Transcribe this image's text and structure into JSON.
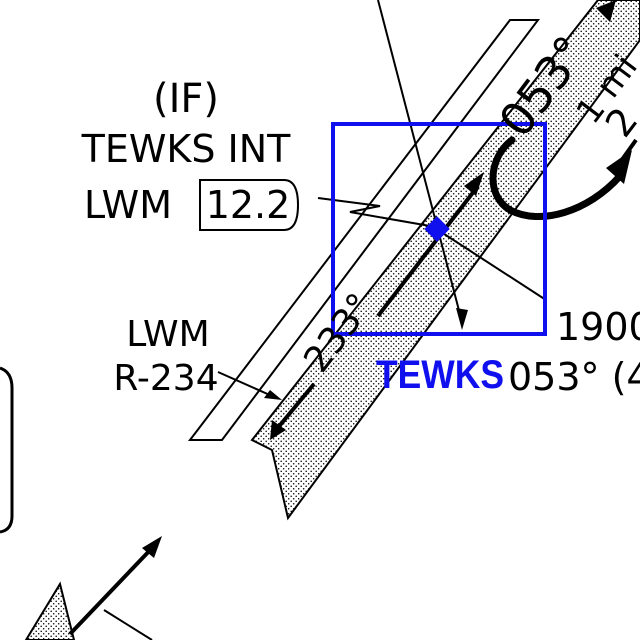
{
  "fix": {
    "if_label": "(IF)",
    "name_label": "TEWKS INT",
    "navaid_label": "LWM",
    "dme_value": "12.2",
    "highlight_label": "TEWKS",
    "highlight_color": "#1010ee"
  },
  "radial": {
    "navaid": "LWM",
    "radial": "R-234"
  },
  "course": {
    "inbound": "053°",
    "outbound": "233°",
    "altitude": "1900",
    "altitude_course": "053° (4"
  },
  "procedure_turn": {
    "distance_label": "1 mi",
    "partial_text": "2"
  }
}
